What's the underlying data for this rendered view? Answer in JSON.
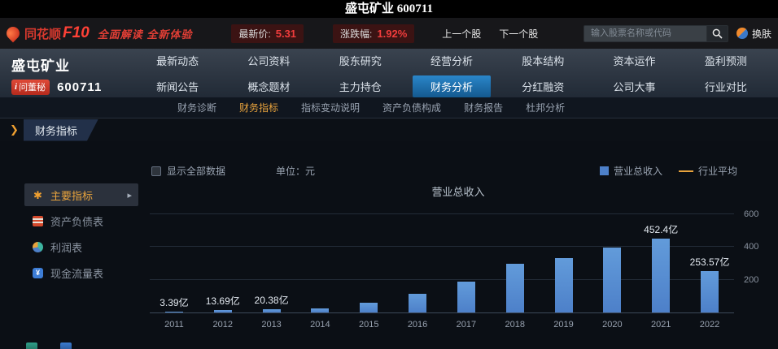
{
  "window_title": "盛屯矿业 600711",
  "header": {
    "logo_text": "同花顺",
    "logo_f10": "F10",
    "slogan": "全面解读 全新体验",
    "latest_price_label": "最新价:",
    "latest_price": "5.31",
    "change_label": "涨跌幅:",
    "change": "1.92%",
    "prev_stock": "上一个股",
    "next_stock": "下一个股",
    "search_placeholder": "输入股票名称或代码",
    "skin_label": "换肤"
  },
  "stock": {
    "name": "盛屯矿业",
    "code": "600711",
    "ask_prefix": "i",
    "ask_secretary": "问董秘"
  },
  "main_nav": {
    "row1": [
      "最新动态",
      "公司资料",
      "股东研究",
      "经营分析",
      "股本结构",
      "资本运作",
      "盈利预测"
    ],
    "row2": [
      "新闻公告",
      "概念题材",
      "主力持仓",
      "财务分析",
      "分红融资",
      "公司大事",
      "行业对比"
    ],
    "active": "财务分析"
  },
  "sub_nav": {
    "items": [
      "财务诊断",
      "财务指标",
      "指标变动说明",
      "资产负债构成",
      "财务报告",
      "杜邦分析"
    ],
    "active": "财务指标"
  },
  "section_title": "财务指标",
  "icons": {
    "section_arrow": "❯",
    "active_item_arrow": "▸",
    "star": "✱",
    "cash": "¥"
  },
  "toolbar": {
    "show_all": "显示全部数据",
    "unit": "单位：元",
    "legend": [
      {
        "label": "营业总收入",
        "type": "bar",
        "color": "#4d80c9"
      },
      {
        "label": "行业平均",
        "type": "line",
        "color": "#e8a33d"
      }
    ]
  },
  "sidebar": {
    "items": [
      {
        "label": "主要指标",
        "icon": "star-icon",
        "active": true
      },
      {
        "label": "资产负债表",
        "icon": "balance-sheet-icon",
        "active": false
      },
      {
        "label": "利润表",
        "icon": "profit-pie-icon",
        "active": false
      },
      {
        "label": "现金流量表",
        "icon": "cashflow-icon",
        "active": false
      }
    ]
  },
  "chart_data": {
    "type": "bar",
    "title": "营业总收入",
    "categories": [
      "2011",
      "2012",
      "2013",
      "2014",
      "2015",
      "2016",
      "2017",
      "2018",
      "2019",
      "2020",
      "2021",
      "2022"
    ],
    "values": [
      3.39,
      13.69,
      20.38,
      25,
      58,
      115,
      190,
      300,
      335,
      395,
      452.4,
      253.57
    ],
    "value_labels": [
      "3.39亿",
      "13.69亿",
      "20.38亿",
      "",
      "",
      "",
      "",
      "",
      "",
      "",
      "452.4亿",
      "253.57亿"
    ],
    "value_unit": "亿",
    "yticks": [
      200,
      400,
      600
    ],
    "ylim": [
      0,
      690
    ],
    "legend": [
      "营业总收入",
      "行业平均"
    ],
    "legend_position": "top-right",
    "grid": true,
    "bar_color": "#4d80c9",
    "line_color": "#e8a33d"
  }
}
